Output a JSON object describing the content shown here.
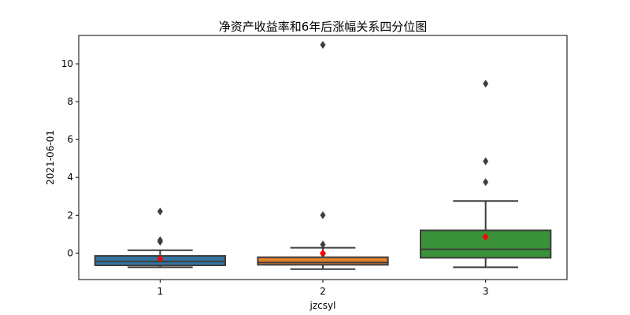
{
  "chart_data": {
    "type": "box",
    "title": "净资产收益率和6年后涨幅关系四分位图",
    "xlabel": "jzcsyl",
    "ylabel": "2021-06-01",
    "categories": [
      "1",
      "2",
      "3"
    ],
    "ylim": [
      -1.4,
      11.5
    ],
    "yticks": [
      0,
      2,
      4,
      6,
      8,
      10
    ],
    "y_tick_labels": [
      "0",
      "2",
      "4",
      "6",
      "8",
      "10"
    ],
    "grid": false,
    "boxes": [
      {
        "category": "1",
        "color": "#3274a1",
        "whisker_low": -0.75,
        "q1": -0.65,
        "median": -0.45,
        "q3": -0.15,
        "whisker_high": 0.15,
        "mean": -0.3,
        "outliers": [
          0.6,
          0.68,
          2.2
        ]
      },
      {
        "category": "2",
        "color": "#e1812c",
        "whisker_low": -0.85,
        "q1": -0.62,
        "median": -0.5,
        "q3": -0.22,
        "whisker_high": 0.28,
        "mean": 0.0,
        "outliers": [
          -0.05,
          0.45,
          2.0,
          11.0
        ]
      },
      {
        "category": "3",
        "color": "#3a923a",
        "whisker_low": -0.75,
        "q1": -0.25,
        "median": 0.2,
        "q3": 1.2,
        "whisker_high": 2.75,
        "mean": 0.85,
        "outliers": [
          3.75,
          4.85,
          8.95
        ]
      }
    ],
    "mean_marker_color": "#ff0000",
    "outlier_color": "#3d3d3d"
  }
}
